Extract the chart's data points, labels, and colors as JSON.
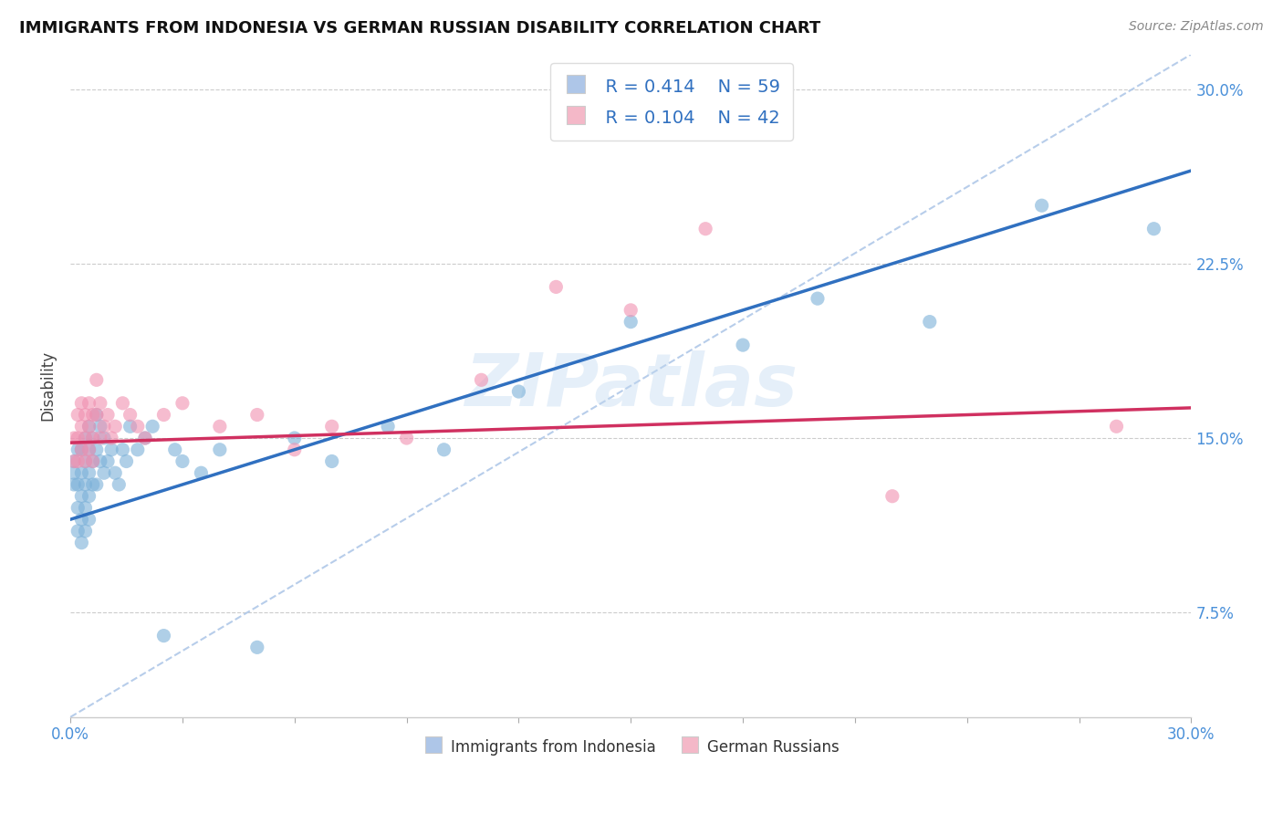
{
  "title": "IMMIGRANTS FROM INDONESIA VS GERMAN RUSSIAN DISABILITY CORRELATION CHART",
  "source": "Source: ZipAtlas.com",
  "ylabel": "Disability",
  "right_yticks": [
    "30.0%",
    "22.5%",
    "15.0%",
    "7.5%"
  ],
  "right_ytick_vals": [
    0.3,
    0.225,
    0.15,
    0.075
  ],
  "xmin": 0.0,
  "xmax": 0.3,
  "ymin": 0.03,
  "ymax": 0.315,
  "legend_r1": "R = 0.414",
  "legend_n1": "N = 59",
  "legend_r2": "R = 0.104",
  "legend_n2": "N = 42",
  "color_indonesia": "#aec6e8",
  "color_german": "#f4b8c8",
  "scatter_color_indonesia": "#7ab0d8",
  "scatter_color_german": "#f090b0",
  "trend_color_indonesia": "#3070c0",
  "trend_color_german": "#d03060",
  "dashed_line_color": "#b0c8e8",
  "watermark": "ZIPatlas",
  "indonesia_points_x": [
    0.001,
    0.001,
    0.001,
    0.002,
    0.002,
    0.002,
    0.002,
    0.003,
    0.003,
    0.003,
    0.003,
    0.003,
    0.004,
    0.004,
    0.004,
    0.004,
    0.004,
    0.005,
    0.005,
    0.005,
    0.005,
    0.005,
    0.006,
    0.006,
    0.006,
    0.007,
    0.007,
    0.007,
    0.008,
    0.008,
    0.009,
    0.009,
    0.01,
    0.011,
    0.012,
    0.013,
    0.014,
    0.015,
    0.016,
    0.018,
    0.02,
    0.022,
    0.025,
    0.028,
    0.03,
    0.035,
    0.04,
    0.05,
    0.06,
    0.07,
    0.085,
    0.1,
    0.12,
    0.15,
    0.18,
    0.2,
    0.23,
    0.26,
    0.29
  ],
  "indonesia_points_y": [
    0.14,
    0.135,
    0.13,
    0.145,
    0.13,
    0.12,
    0.11,
    0.145,
    0.135,
    0.125,
    0.115,
    0.105,
    0.15,
    0.14,
    0.13,
    0.12,
    0.11,
    0.155,
    0.145,
    0.135,
    0.125,
    0.115,
    0.15,
    0.14,
    0.13,
    0.16,
    0.145,
    0.13,
    0.155,
    0.14,
    0.15,
    0.135,
    0.14,
    0.145,
    0.135,
    0.13,
    0.145,
    0.14,
    0.155,
    0.145,
    0.15,
    0.155,
    0.065,
    0.145,
    0.14,
    0.135,
    0.145,
    0.06,
    0.15,
    0.14,
    0.155,
    0.145,
    0.17,
    0.2,
    0.19,
    0.21,
    0.2,
    0.25,
    0.24
  ],
  "german_points_x": [
    0.001,
    0.001,
    0.002,
    0.002,
    0.002,
    0.003,
    0.003,
    0.003,
    0.004,
    0.004,
    0.004,
    0.005,
    0.005,
    0.005,
    0.006,
    0.006,
    0.006,
    0.007,
    0.007,
    0.008,
    0.008,
    0.009,
    0.01,
    0.011,
    0.012,
    0.014,
    0.016,
    0.018,
    0.02,
    0.025,
    0.03,
    0.04,
    0.05,
    0.06,
    0.07,
    0.09,
    0.11,
    0.13,
    0.15,
    0.17,
    0.22,
    0.28
  ],
  "german_points_y": [
    0.15,
    0.14,
    0.16,
    0.15,
    0.14,
    0.165,
    0.155,
    0.145,
    0.16,
    0.15,
    0.14,
    0.165,
    0.155,
    0.145,
    0.16,
    0.15,
    0.14,
    0.175,
    0.16,
    0.165,
    0.15,
    0.155,
    0.16,
    0.15,
    0.155,
    0.165,
    0.16,
    0.155,
    0.15,
    0.16,
    0.165,
    0.155,
    0.16,
    0.145,
    0.155,
    0.15,
    0.175,
    0.215,
    0.205,
    0.24,
    0.125,
    0.155
  ],
  "trend1_x0": 0.0,
  "trend1_x1": 0.3,
  "trend1_y0": 0.115,
  "trend1_y1": 0.265,
  "trend2_x0": 0.0,
  "trend2_x1": 0.3,
  "trend2_y0": 0.148,
  "trend2_y1": 0.163
}
